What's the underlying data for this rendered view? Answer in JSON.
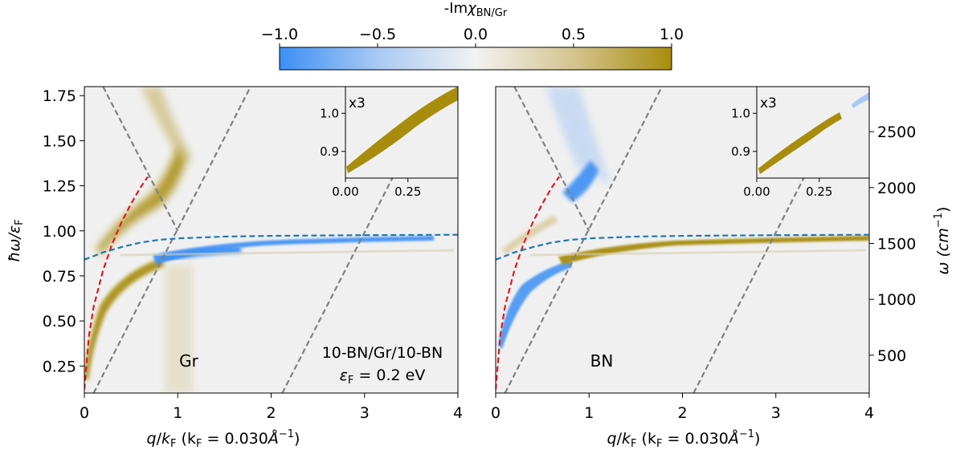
{
  "colorbar": {
    "title_prefix": "-Im",
    "title_symbol": "χ",
    "title_sub": "BN/Gr",
    "ticks": [
      -1.0,
      -0.5,
      0.0,
      0.5,
      1.0
    ],
    "tick_labels": [
      "−1.0",
      "−0.5",
      "0.0",
      "0.5",
      "1.0"
    ],
    "colors": {
      "negative": "#3d8ff5",
      "zero": "#f2f2f2",
      "positive": "#a88d0c"
    }
  },
  "left_panel": {
    "label": "Gr",
    "structure": "10-BN/Gr/10-BN",
    "eF_symbol": "ε",
    "eF_sub": "F",
    "eF_value": " = 0.2 eV",
    "xlabel": {
      "q": "q",
      "slash": "/",
      "k": "k",
      "ksub": "F",
      "paren": " (k",
      "psub": "F",
      "val": " = 0.030",
      "unit": "Å",
      "exp": "−1",
      "close": ")"
    },
    "ylabel": {
      "main": "ħω/ε",
      "sub": "F"
    },
    "inset_label": "x3"
  },
  "right_panel": {
    "label": "BN",
    "xlabel": {
      "q": "q",
      "slash": "/",
      "k": "k",
      "ksub": "F",
      "paren": " (k",
      "psub": "F",
      "val": " = 0.030",
      "unit": "Å",
      "exp": "−1",
      "close": ")"
    },
    "right_ylabel": {
      "main": "ω (cm",
      "exp": "−1",
      "close": ")"
    },
    "inset_label": "x3"
  },
  "chart_data": [
    {
      "type": "heatmap",
      "panel": "Gr",
      "xlim": [
        0,
        4
      ],
      "ylim": [
        0.1,
        1.8
      ],
      "x_ticks": [
        0,
        1,
        2,
        3,
        4
      ],
      "y_ticks": [
        0.25,
        0.5,
        0.75,
        1.0,
        1.25,
        1.5,
        1.75
      ],
      "y_tick_labels": [
        "0.25",
        "0.50",
        "0.75",
        "1.00",
        "1.25",
        "1.50",
        "1.75"
      ],
      "dispersion_lines": {
        "red_dashed": {
          "x": [
            0,
            0.05,
            0.1,
            0.2,
            0.3,
            0.4,
            0.5,
            0.6,
            0.68
          ],
          "y": [
            0.12,
            0.42,
            0.58,
            0.78,
            0.93,
            1.05,
            1.15,
            1.24,
            1.3
          ]
        },
        "blue_dashed": {
          "x": [
            0,
            0.2,
            0.4,
            0.6,
            0.8,
            1.0,
            1.5,
            2.0,
            3.0,
            4.0
          ],
          "y": [
            0.84,
            0.88,
            0.91,
            0.935,
            0.95,
            0.958,
            0.968,
            0.972,
            0.976,
            0.978
          ]
        },
        "gray_dashed": [
          {
            "x": [
              0.2,
              1.0
            ],
            "y": [
              1.8,
              1.0
            ]
          },
          {
            "x": [
              0.1,
              1.78
            ],
            "y": [
              0.1,
              1.8
            ]
          },
          {
            "x": [
              2.12,
              3.8
            ],
            "y": [
              0.1,
              1.8
            ]
          }
        ]
      },
      "inset": {
        "xlim": [
          0,
          0.45
        ],
        "ylim": [
          0.83,
          1.07
        ],
        "x_ticks": [
          0.0,
          0.25
        ],
        "x_tick_labels": [
          "0.00",
          "0.25"
        ],
        "y_ticks": [
          0.9,
          1.0
        ],
        "y_tick_labels": [
          "0.9",
          "1.0"
        ]
      }
    },
    {
      "type": "heatmap",
      "panel": "BN",
      "xlim": [
        0,
        4
      ],
      "ylim": [
        0.1,
        1.8
      ],
      "x_ticks": [
        0,
        1,
        2,
        3,
        4
      ],
      "right_y_ticks": [
        500,
        1000,
        1500,
        2000,
        2500
      ],
      "right_y_tick_labels": [
        "500",
        "1000",
        "1500",
        "2000",
        "2500"
      ],
      "dispersion_lines": {
        "red_dashed": {
          "x": [
            0,
            0.05,
            0.1,
            0.2,
            0.3,
            0.4,
            0.5,
            0.6,
            0.68
          ],
          "y": [
            0.12,
            0.42,
            0.58,
            0.78,
            0.93,
            1.05,
            1.15,
            1.24,
            1.3
          ]
        },
        "blue_dashed": {
          "x": [
            0,
            0.2,
            0.4,
            0.6,
            0.8,
            1.0,
            1.5,
            2.0,
            3.0,
            4.0
          ],
          "y": [
            0.84,
            0.88,
            0.91,
            0.935,
            0.95,
            0.958,
            0.968,
            0.972,
            0.976,
            0.978
          ]
        },
        "gray_dashed": [
          {
            "x": [
              0.2,
              1.0
            ],
            "y": [
              1.8,
              1.0
            ]
          },
          {
            "x": [
              0.1,
              1.78
            ],
            "y": [
              0.1,
              1.8
            ]
          },
          {
            "x": [
              2.12,
              3.8
            ],
            "y": [
              0.1,
              1.8
            ]
          }
        ]
      },
      "inset": {
        "xlim": [
          0,
          0.45
        ],
        "ylim": [
          0.83,
          1.07
        ],
        "x_ticks": [
          0.0,
          0.25
        ],
        "x_tick_labels": [
          "0.00",
          "0.25"
        ],
        "y_ticks": [
          0.9,
          1.0
        ],
        "y_tick_labels": [
          "0.9",
          "1.0"
        ]
      }
    }
  ]
}
